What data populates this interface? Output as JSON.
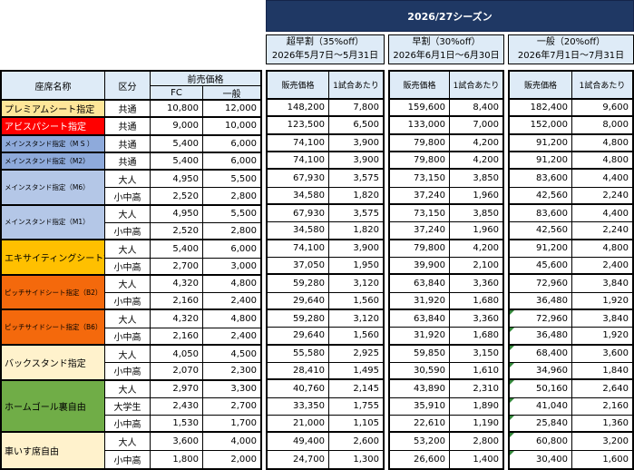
{
  "season_title": "2026/27シーズン",
  "tiers": [
    {
      "title_line1": "超早割（35%off）",
      "title_line2": "2026年5月7日～5月31日"
    },
    {
      "title_line1": "早割（30%off）",
      "title_line2": "2026年6月1日～6月30日"
    },
    {
      "title_line1": "一般（20%off）",
      "title_line2": "2026年7月1日～7月31日"
    }
  ],
  "tier_col_headers": {
    "sale_price": "販売価格",
    "per_game": "1試合あたり"
  },
  "left_header": {
    "seat": "座席名称",
    "category": "区分",
    "presale": "前売価格",
    "fc": "FC",
    "general": "一般"
  },
  "colors": {
    "navy": "#1F3864",
    "header_blue": "#DEEBF7",
    "marker_green": "#33883a",
    "premium": "#FFE699",
    "avispa": "#FF0000",
    "main_dark": "#8EAADB",
    "main_light": "#B4C7E7",
    "exciting": "#FFC000",
    "pitchside": "#F4690C",
    "backstand": "#FFF2CC",
    "homegoal": "#70AD47",
    "wheelchair": "#FFF2CC"
  },
  "sections": [
    {
      "name": "プレミアムシート指定",
      "color": "#FFE699",
      "text_color": "#000000",
      "small": false,
      "rows": [
        {
          "category": "共通",
          "fc": "10,800",
          "general": "12,000",
          "prices": [
            [
              "148,200",
              "7,800"
            ],
            [
              "159,600",
              "8,400"
            ],
            [
              "182,400",
              "9,600"
            ]
          ],
          "mark": false
        }
      ]
    },
    {
      "name": "アビスパシート指定",
      "color": "#FF0000",
      "text_color": "#ffffff",
      "small": false,
      "rows": [
        {
          "category": "共通",
          "fc": "9,000",
          "general": "10,000",
          "prices": [
            [
              "123,500",
              "6,500"
            ],
            [
              "133,000",
              "7,000"
            ],
            [
              "152,000",
              "8,000"
            ]
          ],
          "mark": false
        }
      ]
    },
    {
      "name": "メインスタンド指定（M S ）",
      "color": "#8EAADB",
      "text_color": "#000000",
      "small": true,
      "rows": [
        {
          "category": "共通",
          "fc": "5,400",
          "general": "6,000",
          "prices": [
            [
              "74,100",
              "3,900"
            ],
            [
              "79,800",
              "4,200"
            ],
            [
              "91,200",
              "4,800"
            ]
          ],
          "mark": false
        }
      ]
    },
    {
      "name": "メインスタンド指定（M2）",
      "color": "#8EAADB",
      "text_color": "#000000",
      "small": true,
      "rows": [
        {
          "category": "共通",
          "fc": "5,400",
          "general": "6,000",
          "prices": [
            [
              "74,100",
              "3,900"
            ],
            [
              "79,800",
              "4,200"
            ],
            [
              "91,200",
              "4,800"
            ]
          ],
          "mark": false
        }
      ]
    },
    {
      "name": "メインスタンド指定（M6）",
      "color": "#B4C7E7",
      "text_color": "#000000",
      "small": true,
      "rows": [
        {
          "category": "大人",
          "fc": "4,950",
          "general": "5,500",
          "prices": [
            [
              "67,930",
              "3,575"
            ],
            [
              "73,150",
              "3,850"
            ],
            [
              "83,600",
              "4,400"
            ]
          ],
          "mark": false
        },
        {
          "category": "小中高",
          "fc": "2,520",
          "general": "2,800",
          "prices": [
            [
              "34,580",
              "1,820"
            ],
            [
              "37,240",
              "1,960"
            ],
            [
              "42,560",
              "2,240"
            ]
          ],
          "mark": false
        }
      ]
    },
    {
      "name": "メインスタンド指定（M1）",
      "color": "#B4C7E7",
      "text_color": "#000000",
      "small": true,
      "rows": [
        {
          "category": "大人",
          "fc": "4,950",
          "general": "5,500",
          "prices": [
            [
              "67,930",
              "3,575"
            ],
            [
              "73,150",
              "3,850"
            ],
            [
              "83,600",
              "4,400"
            ]
          ],
          "mark": false
        },
        {
          "category": "小中高",
          "fc": "2,520",
          "general": "2,800",
          "prices": [
            [
              "34,580",
              "1,820"
            ],
            [
              "37,240",
              "1,960"
            ],
            [
              "42,560",
              "2,240"
            ]
          ],
          "mark": false
        }
      ]
    },
    {
      "name": "エキサイティングシート指定",
      "color": "#FFC000",
      "text_color": "#000000",
      "small": false,
      "rows": [
        {
          "category": "大人",
          "fc": "5,400",
          "general": "6,000",
          "prices": [
            [
              "74,100",
              "3,900"
            ],
            [
              "79,800",
              "4,200"
            ],
            [
              "91,200",
              "4,800"
            ]
          ],
          "mark": false
        },
        {
          "category": "小中高",
          "fc": "2,700",
          "general": "3,000",
          "prices": [
            [
              "37,050",
              "1,950"
            ],
            [
              "39,900",
              "2,100"
            ],
            [
              "45,600",
              "2,400"
            ]
          ],
          "mark": false
        }
      ]
    },
    {
      "name": "ピッチサイドシート指定（B2）",
      "color": "#F4690C",
      "text_color": "#000000",
      "small": true,
      "rows": [
        {
          "category": "大人",
          "fc": "4,320",
          "general": "4,800",
          "prices": [
            [
              "59,280",
              "3,120"
            ],
            [
              "63,840",
              "3,360"
            ],
            [
              "72,960",
              "3,840"
            ]
          ],
          "mark": false
        },
        {
          "category": "小中高",
          "fc": "2,160",
          "general": "2,400",
          "prices": [
            [
              "29,640",
              "1,560"
            ],
            [
              "31,920",
              "1,680"
            ],
            [
              "36,480",
              "1,920"
            ]
          ],
          "mark": false
        }
      ]
    },
    {
      "name": "ピッチサイドシート指定（B6）",
      "color": "#F4690C",
      "text_color": "#000000",
      "small": true,
      "rows": [
        {
          "category": "大人",
          "fc": "4,320",
          "general": "4,800",
          "prices": [
            [
              "59,280",
              "3,120"
            ],
            [
              "63,840",
              "3,360"
            ],
            [
              "72,960",
              "3,840"
            ]
          ],
          "mark": true
        },
        {
          "category": "小中高",
          "fc": "2,160",
          "general": "2,400",
          "prices": [
            [
              "29,640",
              "1,560"
            ],
            [
              "31,920",
              "1,680"
            ],
            [
              "36,480",
              "1,920"
            ]
          ],
          "mark": true
        }
      ]
    },
    {
      "name": "バックスタンド指定",
      "color": "#FFF2CC",
      "text_color": "#000000",
      "small": false,
      "rows": [
        {
          "category": "大人",
          "fc": "4,050",
          "general": "4,500",
          "prices": [
            [
              "55,580",
              "2,925"
            ],
            [
              "59,850",
              "3,150"
            ],
            [
              "68,400",
              "3,600"
            ]
          ],
          "mark": true
        },
        {
          "category": "小中高",
          "fc": "2,070",
          "general": "2,300",
          "prices": [
            [
              "28,410",
              "1,495"
            ],
            [
              "30,590",
              "1,610"
            ],
            [
              "34,960",
              "1,840"
            ]
          ],
          "mark": true
        }
      ]
    },
    {
      "name": "ホームゴール裏自由",
      "color": "#70AD47",
      "text_color": "#000000",
      "small": false,
      "rows": [
        {
          "category": "大人",
          "fc": "2,970",
          "general": "3,300",
          "prices": [
            [
              "40,760",
              "2,145"
            ],
            [
              "43,890",
              "2,310"
            ],
            [
              "50,160",
              "2,640"
            ]
          ],
          "mark": true
        },
        {
          "category": "大学生",
          "fc": "2,430",
          "general": "2,700",
          "prices": [
            [
              "33,350",
              "1,755"
            ],
            [
              "35,910",
              "1,890"
            ],
            [
              "41,040",
              "2,160"
            ]
          ],
          "mark": true
        },
        {
          "category": "小中高",
          "fc": "1,530",
          "general": "1,700",
          "prices": [
            [
              "21,000",
              "1,105"
            ],
            [
              "22,610",
              "1,190"
            ],
            [
              "25,840",
              "1,360"
            ]
          ],
          "mark": true
        }
      ]
    },
    {
      "name": "車いす席自由",
      "color": "#FFF2CC",
      "text_color": "#000000",
      "small": false,
      "rows": [
        {
          "category": "大人",
          "fc": "3,600",
          "general": "4,000",
          "prices": [
            [
              "49,400",
              "2,600"
            ],
            [
              "53,200",
              "2,800"
            ],
            [
              "60,800",
              "3,200"
            ]
          ],
          "mark": true
        },
        {
          "category": "小中高",
          "fc": "1,800",
          "general": "2,000",
          "prices": [
            [
              "24,700",
              "1,300"
            ],
            [
              "26,600",
              "1,400"
            ],
            [
              "30,400",
              "1,600"
            ]
          ],
          "mark": true
        }
      ]
    }
  ]
}
